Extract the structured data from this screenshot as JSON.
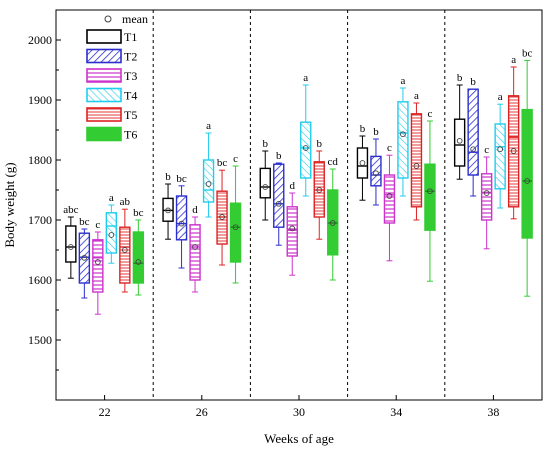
{
  "chart_data": {
    "type": "box",
    "xlabel": "Weeks of age",
    "ylabel": "Body weight (g)",
    "ylim": [
      1400,
      2050
    ],
    "yticks": [
      1500,
      1600,
      1700,
      1800,
      1900,
      2000
    ],
    "categories": [
      "22",
      "26",
      "30",
      "34",
      "38"
    ],
    "legend": {
      "placement": "top-left",
      "mean_label": "mean"
    },
    "series": [
      {
        "name": "T1",
        "color": "#000000",
        "pattern": "none",
        "boxes": [
          {
            "min": 1603,
            "q1": 1630,
            "median": 1655,
            "q3": 1690,
            "max": 1705,
            "mean": 1655,
            "letter": "abc"
          },
          {
            "min": 1668,
            "q1": 1698,
            "median": 1716,
            "q3": 1736,
            "max": 1760,
            "mean": 1716,
            "letter": "b"
          },
          {
            "min": 1700,
            "q1": 1737,
            "median": 1755,
            "q3": 1786,
            "max": 1815,
            "mean": 1755,
            "letter": "b"
          },
          {
            "min": 1733,
            "q1": 1770,
            "median": 1790,
            "q3": 1820,
            "max": 1840,
            "mean": 1795,
            "letter": "b"
          },
          {
            "min": 1768,
            "q1": 1790,
            "median": 1825,
            "q3": 1868,
            "max": 1925,
            "mean": 1832,
            "letter": "b"
          }
        ]
      },
      {
        "name": "T2",
        "color": "#2b2fcc",
        "pattern": "diag-right",
        "boxes": [
          {
            "min": 1570,
            "q1": 1595,
            "median": 1638,
            "q3": 1678,
            "max": 1685,
            "mean": 1637,
            "letter": "bc"
          },
          {
            "min": 1620,
            "q1": 1667,
            "median": 1694,
            "q3": 1740,
            "max": 1757,
            "mean": 1694,
            "letter": "bc"
          },
          {
            "min": 1658,
            "q1": 1688,
            "median": 1727,
            "q3": 1793,
            "max": 1795,
            "mean": 1727,
            "letter": "b"
          },
          {
            "min": 1725,
            "q1": 1757,
            "median": 1775,
            "q3": 1806,
            "max": 1835,
            "mean": 1778,
            "letter": "b"
          },
          {
            "min": 1740,
            "q1": 1775,
            "median": 1813,
            "q3": 1918,
            "max": 1918,
            "mean": 1818,
            "letter": "b"
          }
        ]
      },
      {
        "name": "T3",
        "color": "#cc33cc",
        "pattern": "horiz",
        "boxes": [
          {
            "min": 1543,
            "q1": 1580,
            "median": 1637,
            "q3": 1667,
            "max": 1680,
            "mean": 1630,
            "letter": "c"
          },
          {
            "min": 1580,
            "q1": 1600,
            "median": 1655,
            "q3": 1692,
            "max": 1705,
            "mean": 1655,
            "letter": "d"
          },
          {
            "min": 1608,
            "q1": 1640,
            "median": 1683,
            "q3": 1722,
            "max": 1745,
            "mean": 1686,
            "letter": "d"
          },
          {
            "min": 1632,
            "q1": 1695,
            "median": 1742,
            "q3": 1775,
            "max": 1808,
            "mean": 1740,
            "letter": "c"
          },
          {
            "min": 1652,
            "q1": 1700,
            "median": 1746,
            "q3": 1777,
            "max": 1805,
            "mean": 1745,
            "letter": "c"
          }
        ]
      },
      {
        "name": "T4",
        "color": "#22ccee",
        "pattern": "diag-left",
        "boxes": [
          {
            "min": 1628,
            "q1": 1645,
            "median": 1690,
            "q3": 1712,
            "max": 1725,
            "mean": 1675,
            "letter": "a"
          },
          {
            "min": 1705,
            "q1": 1730,
            "median": 1750,
            "q3": 1800,
            "max": 1845,
            "mean": 1760,
            "letter": "a"
          },
          {
            "min": 1740,
            "q1": 1770,
            "median": 1820,
            "q3": 1863,
            "max": 1925,
            "mean": 1820,
            "letter": "a"
          },
          {
            "min": 1740,
            "q1": 1770,
            "median": 1845,
            "q3": 1897,
            "max": 1920,
            "mean": 1843,
            "letter": "a"
          },
          {
            "min": 1720,
            "q1": 1752,
            "median": 1822,
            "q3": 1860,
            "max": 1893,
            "mean": 1818,
            "letter": "a"
          }
        ]
      },
      {
        "name": "T5",
        "color": "#dd2222",
        "pattern": "horiz-dense",
        "boxes": [
          {
            "min": 1580,
            "q1": 1595,
            "median": 1655,
            "q3": 1688,
            "max": 1718,
            "mean": 1650,
            "letter": "ab"
          },
          {
            "min": 1625,
            "q1": 1660,
            "median": 1705,
            "q3": 1748,
            "max": 1783,
            "mean": 1705,
            "letter": "bc"
          },
          {
            "min": 1668,
            "q1": 1705,
            "median": 1750,
            "q3": 1797,
            "max": 1815,
            "mean": 1750,
            "letter": "b"
          },
          {
            "min": 1700,
            "q1": 1722,
            "median": 1770,
            "q3": 1877,
            "max": 1895,
            "mean": 1790,
            "letter": "a"
          },
          {
            "min": 1702,
            "q1": 1722,
            "median": 1838,
            "q3": 1907,
            "max": 1955,
            "mean": 1815,
            "letter": "a"
          }
        ]
      },
      {
        "name": "T6",
        "color": "#33cc33",
        "pattern": "solid",
        "boxes": [
          {
            "min": 1575,
            "q1": 1595,
            "median": 1628,
            "q3": 1680,
            "max": 1700,
            "mean": 1630,
            "letter": "bc"
          },
          {
            "min": 1595,
            "q1": 1630,
            "median": 1688,
            "q3": 1728,
            "max": 1790,
            "mean": 1688,
            "letter": "c"
          },
          {
            "min": 1600,
            "q1": 1642,
            "median": 1695,
            "q3": 1750,
            "max": 1785,
            "mean": 1695,
            "letter": "cd"
          },
          {
            "min": 1598,
            "q1": 1683,
            "median": 1748,
            "q3": 1793,
            "max": 1865,
            "mean": 1748,
            "letter": "c"
          },
          {
            "min": 1573,
            "q1": 1670,
            "median": 1765,
            "q3": 1884,
            "max": 1966,
            "mean": 1765,
            "letter": "bc"
          }
        ]
      }
    ]
  }
}
